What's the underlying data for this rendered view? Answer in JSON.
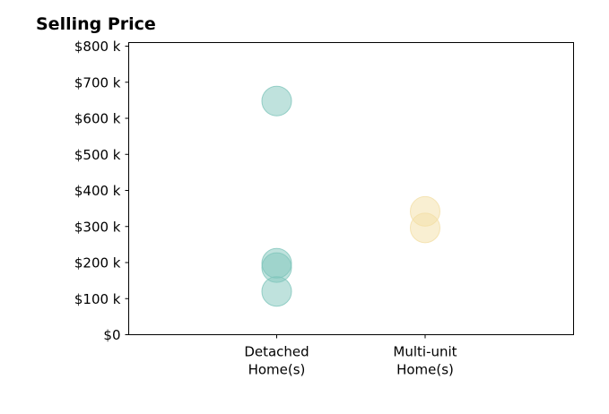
{
  "chart_data": {
    "type": "scatter",
    "title": "Selling Price",
    "xlabel": "",
    "ylabel": "",
    "ylim": [
      0,
      810000
    ],
    "y_ticks": [
      0,
      100000,
      200000,
      300000,
      400000,
      500000,
      600000,
      700000,
      800000
    ],
    "y_tick_labels": [
      "$0",
      "$100 k",
      "$200 k",
      "$300 k",
      "$400 k",
      "$500 k",
      "$600 k",
      "$700 k",
      "$800 k"
    ],
    "categories": [
      {
        "lines": [
          "Detached",
          "Home(s)"
        ]
      },
      {
        "lines": [
          "Multi-unit",
          "Home(s)"
        ]
      }
    ],
    "grid": false,
    "series": [
      {
        "category_index": 0,
        "color": "#7fc5bc",
        "values": [
          648000,
          198000,
          186000,
          120000
        ]
      },
      {
        "category_index": 1,
        "color": "#f3dfa6",
        "values": [
          342000,
          296000
        ]
      }
    ]
  }
}
